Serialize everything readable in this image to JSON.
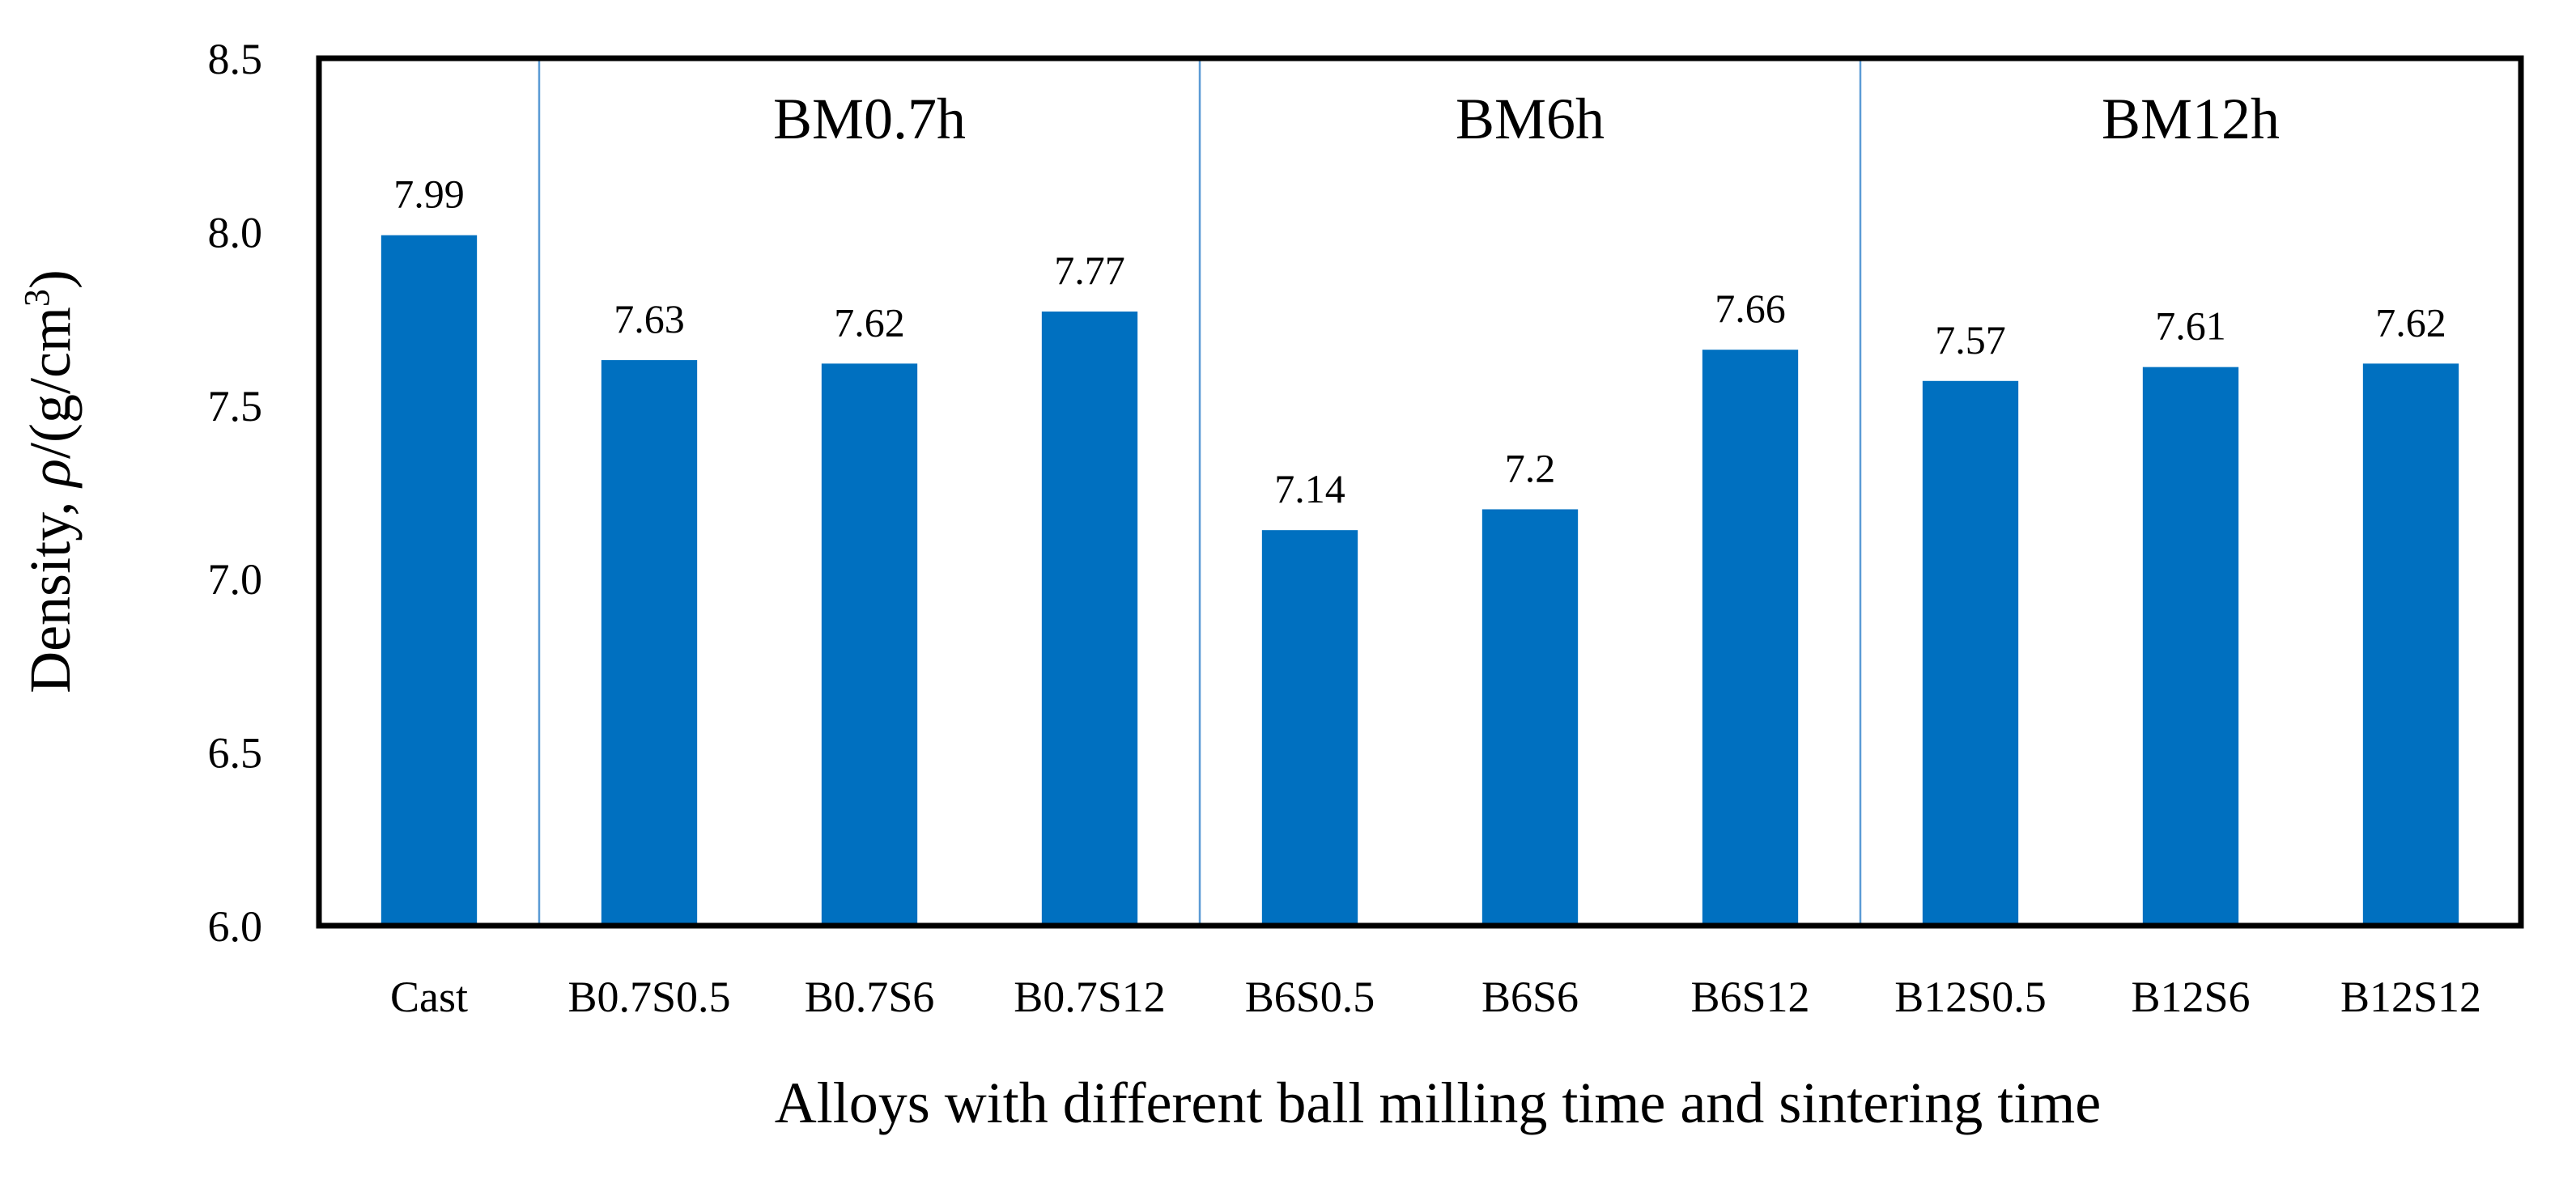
{
  "chart_data": {
    "type": "bar",
    "title": "",
    "xlabel": "Alloys with different ball milling time and sintering time",
    "ylabel": {
      "prefix": "Density, ",
      "symbol": "ρ",
      "unit": "/(g/cm",
      "superscript": "3",
      "suffix": ")"
    },
    "ylim": [
      6.0,
      8.5
    ],
    "yticks": [
      "6.0",
      "6.5",
      "7.0",
      "7.5",
      "8.0",
      "8.5"
    ],
    "categories": [
      "Cast",
      "B0.7S0.5",
      "B0.7S6",
      "B0.7S12",
      "B6S0.5",
      "B6S6",
      "B6S12",
      "B12S0.5",
      "B12S6",
      "B12S12"
    ],
    "values": [
      7.99,
      7.63,
      7.62,
      7.77,
      7.14,
      7.2,
      7.66,
      7.57,
      7.61,
      7.62
    ],
    "data_labels": [
      "7.99",
      "7.63",
      "7.62",
      "7.77",
      "7.14",
      "7.2",
      "7.66",
      "7.57",
      "7.61",
      "7.62"
    ],
    "groups": [
      {
        "label": "BM0.7h",
        "start": 1,
        "end": 3
      },
      {
        "label": "BM6h",
        "start": 4,
        "end": 6
      },
      {
        "label": "BM12h",
        "start": 7,
        "end": 9
      }
    ],
    "grid": false,
    "colors": {
      "bar": "#0070C0",
      "separator": "#5B9BD5",
      "frame": "#000000"
    }
  }
}
